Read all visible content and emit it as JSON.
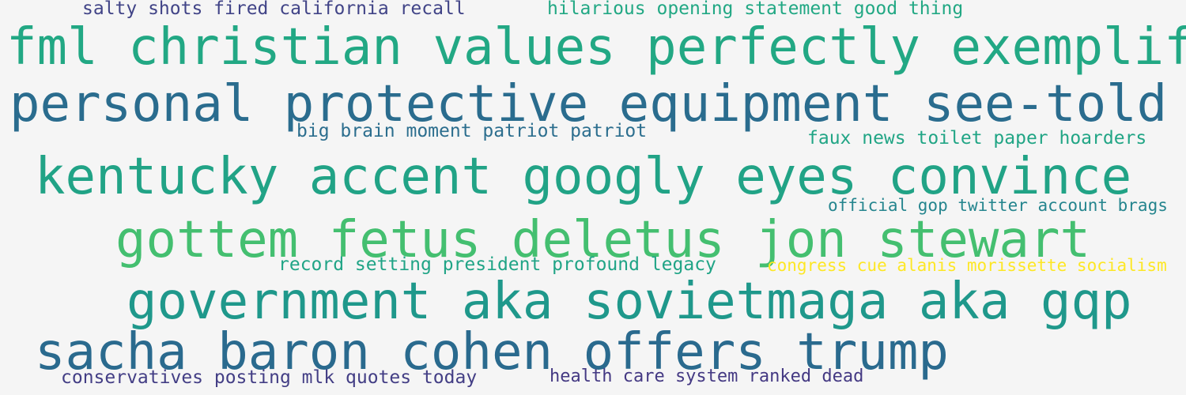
{
  "word_cloud": {
    "phrases": [
      {
        "text": "salty shots fired california recall",
        "color": "#414487"
      },
      {
        "text": "hilarious opening statement good thing",
        "color": "#22a884"
      },
      {
        "text": "fml christian values perfectly exemplified",
        "color": "#22a884"
      },
      {
        "text": "personal protective equipment see-told",
        "color": "#2a6c8e"
      },
      {
        "text": "big brain moment patriot patriot",
        "color": "#2c6e8e"
      },
      {
        "text": "faux news toilet paper hoarders",
        "color": "#21a585"
      },
      {
        "text": "kentucky accent googly eyes convince",
        "color": "#21a386"
      },
      {
        "text": "official gop twitter account brags",
        "color": "#25858e"
      },
      {
        "text": "gottem fetus deletus jon stewart",
        "color": "#44bf70"
      },
      {
        "text": "record setting president profound legacy",
        "color": "#20a486"
      },
      {
        "text": "congress cue alanis morissette socialism",
        "color": "#fde725"
      },
      {
        "text": "government aka sovietmaga aka gqp",
        "color": "#1f988b"
      },
      {
        "text": "sacha baron cohen offers trump",
        "color": "#2a6a8e"
      },
      {
        "text": "conservatives posting mlk quotes today",
        "color": "#433e85"
      },
      {
        "text": "health care system ranked dead",
        "color": "#443983"
      }
    ]
  }
}
